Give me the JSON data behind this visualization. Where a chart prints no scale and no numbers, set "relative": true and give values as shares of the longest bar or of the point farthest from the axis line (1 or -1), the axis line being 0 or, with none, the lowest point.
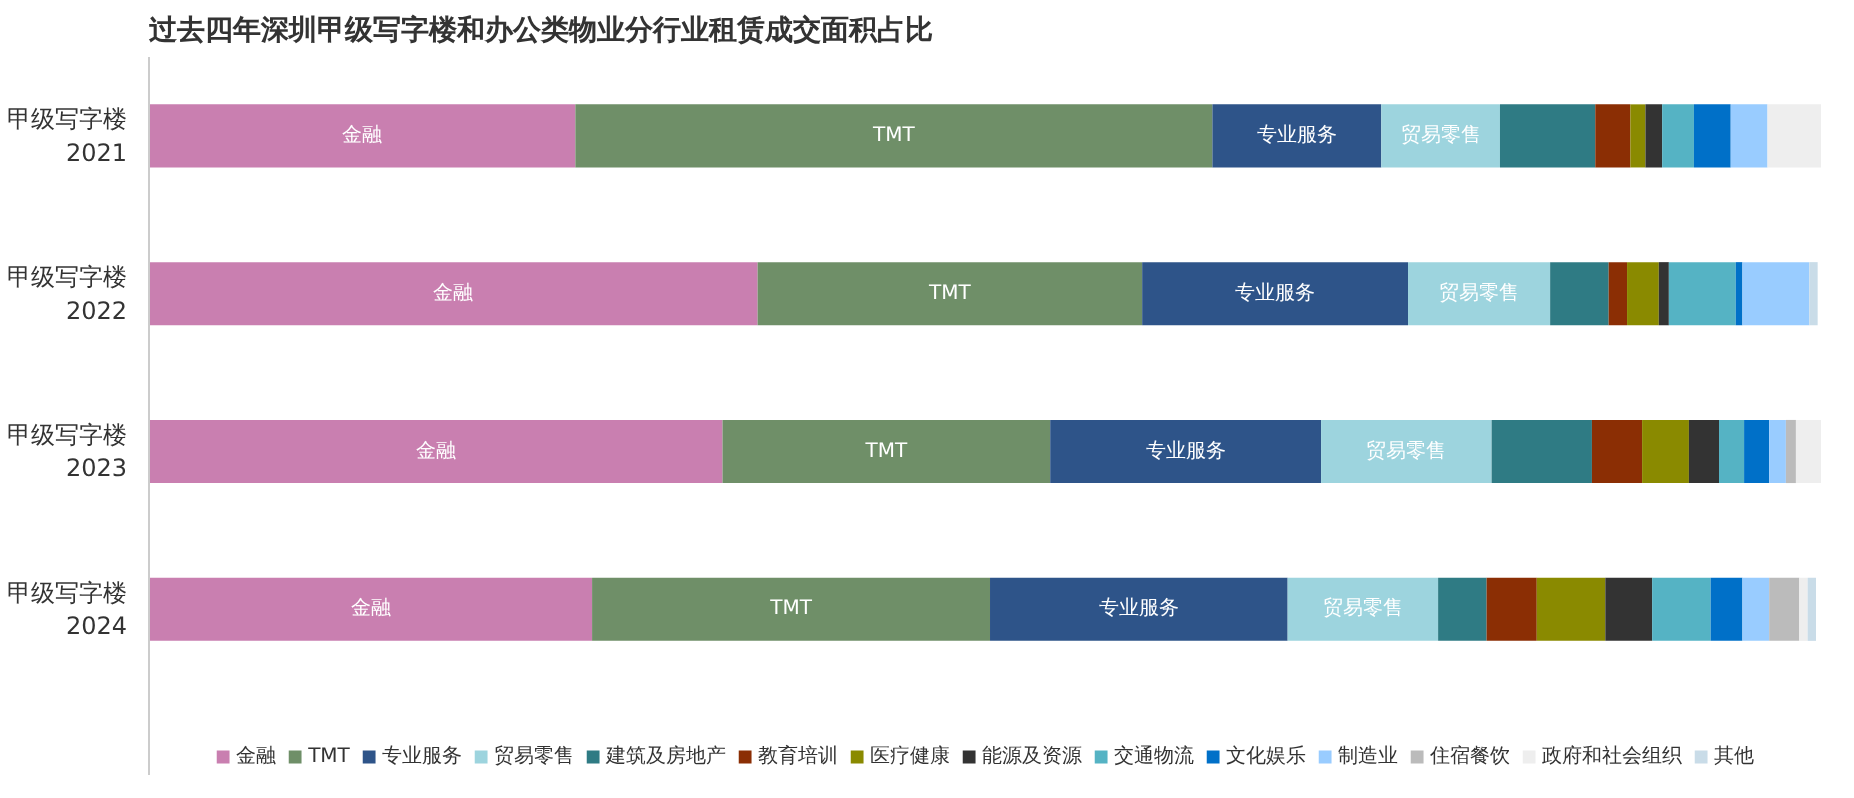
{
  "chart_data": {
    "type": "bar",
    "orientation": "horizontal",
    "stacked": true,
    "relative": true,
    "title": "过去四年深圳甲级写字楼和办公类物业分行业租赁成交面积占比",
    "categories": [
      "甲级写字楼\n2021",
      "甲级写字楼\n2022",
      "甲级写字楼\n2023",
      "甲级写字楼\n2024"
    ],
    "legend": "bottom",
    "grid": false,
    "series": [
      {
        "name": "金融",
        "color": "#c97fb0",
        "values": [
          0.255,
          0.364,
          0.343,
          0.265
        ]
      },
      {
        "name": "TMT",
        "color": "#6f8f68",
        "values": [
          0.381,
          0.23,
          0.196,
          0.238
        ]
      },
      {
        "name": "专业服务",
        "color": "#2e5489",
        "values": [
          0.101,
          0.159,
          0.162,
          0.178
        ]
      },
      {
        "name": "贸易零售",
        "color": "#9dd4de",
        "values": [
          0.071,
          0.085,
          0.102,
          0.09
        ]
      },
      {
        "name": "建筑及房地产",
        "color": "#2f7b84",
        "values": [
          0.057,
          0.035,
          0.06,
          0.029
        ]
      },
      {
        "name": "教育培训",
        "color": "#8b2e04",
        "values": [
          0.021,
          0.011,
          0.03,
          0.03
        ]
      },
      {
        "name": "医疗健康",
        "color": "#8a8a00",
        "values": [
          0.009,
          0.019,
          0.028,
          0.041
        ]
      },
      {
        "name": "能源及资源",
        "color": "#333333",
        "values": [
          0.01,
          0.006,
          0.018,
          0.028
        ]
      },
      {
        "name": "交通物流",
        "color": "#55b3c4",
        "values": [
          0.019,
          0.04,
          0.015,
          0.035
        ]
      },
      {
        "name": "文化娱乐",
        "color": "#0070c8",
        "values": [
          0.022,
          0.004,
          0.015,
          0.019
        ]
      },
      {
        "name": "制造业",
        "color": "#99ccff",
        "values": [
          0.022,
          0.04,
          0.01,
          0.016
        ]
      },
      {
        "name": "住宿餐饮",
        "color": "#bbbbbb",
        "values": [
          null,
          null,
          0.006,
          0.018
        ]
      },
      {
        "name": "政府和社会组织",
        "color": "#eeeeee",
        "values": [
          0.032,
          null,
          0.015,
          0.005
        ]
      },
      {
        "name": "其他",
        "color": "#c9dce8",
        "values": [
          null,
          0.005,
          null,
          0.005
        ]
      }
    ]
  }
}
